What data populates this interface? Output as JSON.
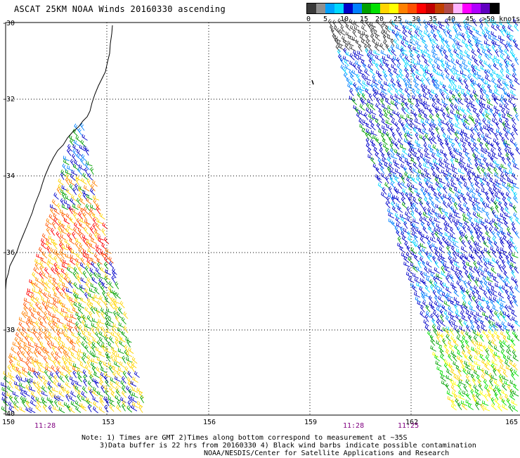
{
  "title": "ASCAT 25KM NOAA Winds 20160330 ascending",
  "legend": {
    "colors": [
      "#3a3a3a",
      "#909090",
      "#00a0ff",
      "#00d8ff",
      "#0000c8",
      "#0080ff",
      "#00a000",
      "#00e000",
      "#ffd400",
      "#ffff00",
      "#ff8000",
      "#ff5000",
      "#ff0000",
      "#c00000",
      "#c04000",
      "#b04a4a",
      "#ffb4ff",
      "#ff00ff",
      "#b000ff",
      "#6000c0",
      "#000000"
    ],
    "labels": [
      "0",
      "5",
      "10",
      "15",
      "20",
      "25",
      "30",
      "35",
      "40",
      "45",
      ">50 knots"
    ]
  },
  "axes": {
    "lon_labels": [
      "150",
      "153",
      "156",
      "159",
      "162",
      "165"
    ],
    "lat_labels": [
      "-30",
      "-32",
      "-34",
      "-36",
      "-38",
      "-40"
    ]
  },
  "times": [
    "11:28",
    "11:28",
    "11:25"
  ],
  "notes": {
    "line1": "Note: 1) Times are GMT 2)Times along bottom correspond to measurement at ~35S",
    "line2": "3)Data buffer is 22 hrs from 20160330 4) Black wind barbs indicate possible contamination",
    "line3": "NOAA/NESDIS/Center for Satellite Applications and Research"
  }
}
